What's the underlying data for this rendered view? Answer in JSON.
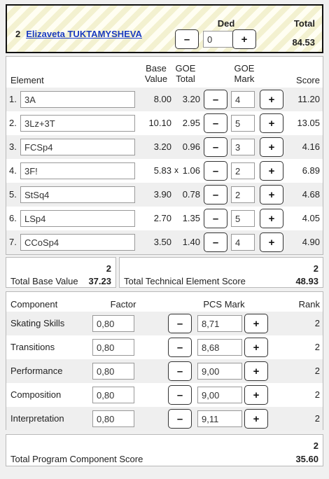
{
  "header": {
    "start_number": "2",
    "skater_name": "Elizaveta TUKTAMYSHEVA",
    "ded_label": "Ded",
    "ded_value": "0",
    "minus": "–",
    "plus": "+",
    "total_label": "Total",
    "total_value": "84.53"
  },
  "elements": {
    "headers": {
      "element": "Element",
      "base_value": [
        "Base",
        "Value"
      ],
      "goe_total": [
        "GOE",
        "Total"
      ],
      "goe_mark": [
        "GOE",
        "Mark"
      ],
      "score": "Score"
    },
    "rows": [
      {
        "num": "1.",
        "code": "3A",
        "base": "8.00",
        "x": "",
        "goe": "3.20",
        "mark": "4",
        "score": "11.20"
      },
      {
        "num": "2.",
        "code": "3Lz+3T",
        "base": "10.10",
        "x": "",
        "goe": "2.95",
        "mark": "5",
        "score": "13.05"
      },
      {
        "num": "3.",
        "code": "FCSp4",
        "base": "3.20",
        "x": "",
        "goe": "0.96",
        "mark": "3",
        "score": "4.16"
      },
      {
        "num": "4.",
        "code": "3F!",
        "base": "5.83",
        "x": "x",
        "goe": "1.06",
        "mark": "2",
        "score": "6.89"
      },
      {
        "num": "5.",
        "code": "StSq4",
        "base": "3.90",
        "x": "",
        "goe": "0.78",
        "mark": "2",
        "score": "4.68"
      },
      {
        "num": "6.",
        "code": "LSp4",
        "base": "2.70",
        "x": "",
        "goe": "1.35",
        "mark": "5",
        "score": "4.05"
      },
      {
        "num": "7.",
        "code": "CCoSp4",
        "base": "3.50",
        "x": "",
        "goe": "1.40",
        "mark": "4",
        "score": "4.90"
      }
    ]
  },
  "total_base_value": {
    "count": "2",
    "label": "Total Base Value",
    "value": "37.23"
  },
  "total_tes": {
    "count": "2",
    "label": "Total Technical Element Score",
    "value": "48.93"
  },
  "components": {
    "headers": {
      "component": "Component",
      "factor": "Factor",
      "pcs_mark": "PCS Mark",
      "rank": "Rank"
    },
    "rows": [
      {
        "name": "Skating Skills",
        "factor": "0,80",
        "mark": "8,71",
        "rank": "2"
      },
      {
        "name": "Transitions",
        "factor": "0,80",
        "mark": "8,68",
        "rank": "2"
      },
      {
        "name": "Performance",
        "factor": "0,80",
        "mark": "9,00",
        "rank": "2"
      },
      {
        "name": "Composition",
        "factor": "0,80",
        "mark": "9,00",
        "rank": "2"
      },
      {
        "name": "Interpretation",
        "factor": "0,80",
        "mark": "9,11",
        "rank": "2"
      }
    ]
  },
  "total_pcs": {
    "count": "2",
    "label": "Total Program Component Score",
    "value": "35.60"
  }
}
